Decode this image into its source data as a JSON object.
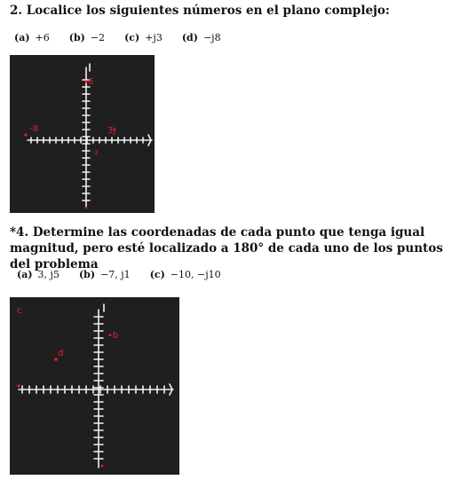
{
  "problem2": {
    "title": "2. Localice los siguientes números en el plano complejo:",
    "parts": [
      {
        "label": "(a)",
        "value": "+6"
      },
      {
        "label": "(b)",
        "value": "−2"
      },
      {
        "label": "(c)",
        "value": "+j3"
      },
      {
        "label": "(d)",
        "value": "−j8"
      }
    ],
    "sketch_marks": {
      "top": "6",
      "left": "-8",
      "right": "3j",
      "bottom_small": "-2",
      "axis_end": "j"
    }
  },
  "problem4": {
    "title": "*4. Determine las coordenadas de cada punto que tenga igual magnitud, pero esté localizado a 180° de cada uno de los puntos del problema",
    "parts": [
      {
        "label": "(a)",
        "value": "3, j5"
      },
      {
        "label": "(b)",
        "value": "−7, j1"
      },
      {
        "label": "(c)",
        "value": "−10, −j10"
      }
    ],
    "sketch_marks": {
      "point_a": "•b",
      "point_b": "d",
      "corner": "c"
    }
  },
  "colors": {
    "sketch_bg": "#1f1f1f",
    "axis": "#f2f2f2",
    "ink": "#e0202a"
  }
}
